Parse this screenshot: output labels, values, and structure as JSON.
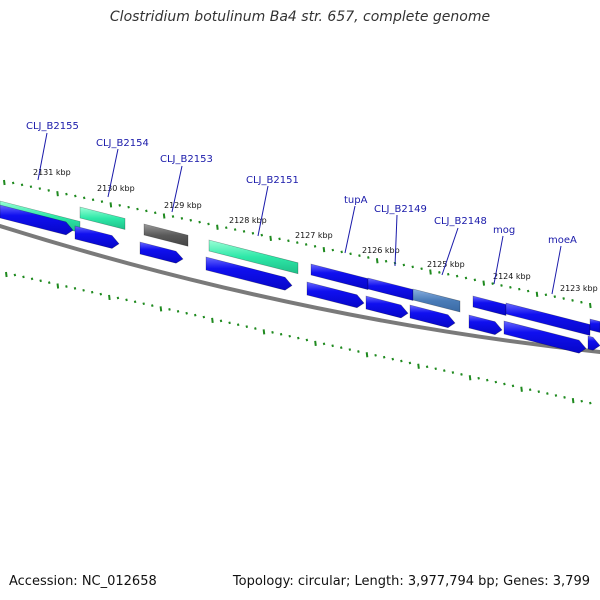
{
  "title": "Clostridium botulinum Ba4 str. 657, complete genome",
  "footer": {
    "accession": "Accession: NC_012658",
    "summary": "Topology: circular; Length: 3,977,794 bp; Genes: 3,799"
  },
  "colors": {
    "cds_blue": "#0a0aee",
    "rna_green": "#2ee8a8",
    "pseudo_gray": "#606060",
    "highlight_steel": "#4a7cb8",
    "backbone_gray": "#7a7a7a",
    "tick_green": "#1f8a1f",
    "label_blue": "#1a1aaa"
  },
  "tick_labels": [
    "2131 kbp",
    "2130 kbp",
    "2129 kbp",
    "2128 kbp",
    "2127 kbp",
    "2126 kbp",
    "2125 kbp",
    "2124 kbp",
    "2123 kbp"
  ],
  "gene_labels": [
    "CLJ_B2155",
    "CLJ_B2154",
    "CLJ_B2153",
    "CLJ_B2151",
    "tupA",
    "CLJ_B2149",
    "CLJ_B2148",
    "mog",
    "moeA"
  ]
}
